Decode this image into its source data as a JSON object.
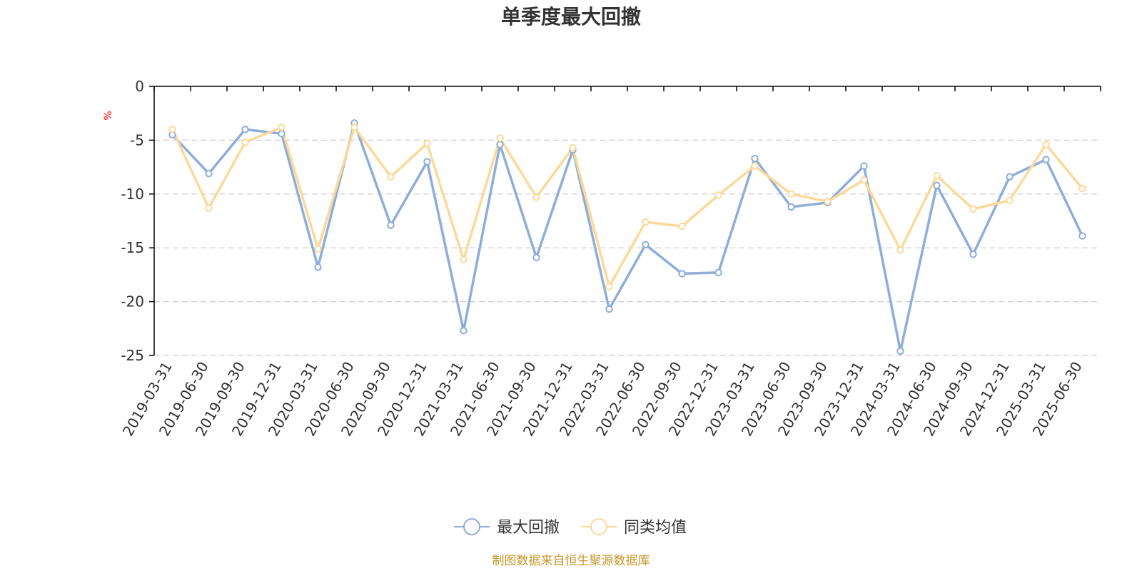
{
  "chart_data": {
    "type": "line",
    "title": "单季度最大回撤",
    "ylabel": "%",
    "xlabel": "",
    "ylim": [
      -25,
      0
    ],
    "yticks": [
      0,
      -5,
      -10,
      -15,
      -20,
      -25
    ],
    "categories": [
      "2019-03-31",
      "2019-06-30",
      "2019-09-30",
      "2019-12-31",
      "2020-03-31",
      "2020-06-30",
      "2020-09-30",
      "2020-12-31",
      "2021-03-31",
      "2021-06-30",
      "2021-09-30",
      "2021-12-31",
      "2022-03-31",
      "2022-06-30",
      "2022-09-30",
      "2022-12-31",
      "2023-03-31",
      "2023-06-30",
      "2023-09-30",
      "2023-12-31",
      "2024-03-31",
      "2024-06-30",
      "2024-09-30",
      "2024-12-31",
      "2025-03-31",
      "2025-06-30"
    ],
    "series": [
      {
        "name": "最大回撤",
        "color": "#8eadd9",
        "values": [
          -4.5,
          -8.1,
          -4.0,
          -4.4,
          -16.8,
          -3.4,
          -12.9,
          -7.0,
          -22.7,
          -5.4,
          -15.9,
          -5.9,
          -20.7,
          -14.7,
          -17.4,
          -17.3,
          -6.7,
          -11.2,
          -10.8,
          -7.4,
          -24.6,
          -9.2,
          -15.6,
          -8.4,
          -6.8,
          -13.9
        ]
      },
      {
        "name": "同类均值",
        "color": "#fcd99a",
        "values": [
          -4.0,
          -11.3,
          -5.2,
          -3.8,
          -15.1,
          -3.8,
          -8.4,
          -5.3,
          -16.1,
          -4.8,
          -10.3,
          -5.7,
          -18.6,
          -12.6,
          -13.0,
          -10.1,
          -7.4,
          -10.0,
          -10.7,
          -8.7,
          -15.2,
          -8.3,
          -11.4,
          -10.6,
          -5.4,
          -9.5
        ]
      }
    ],
    "grid": true,
    "legend_position": "bottom"
  },
  "footer": {
    "source": "制图数据来自恒生聚源数据库"
  }
}
